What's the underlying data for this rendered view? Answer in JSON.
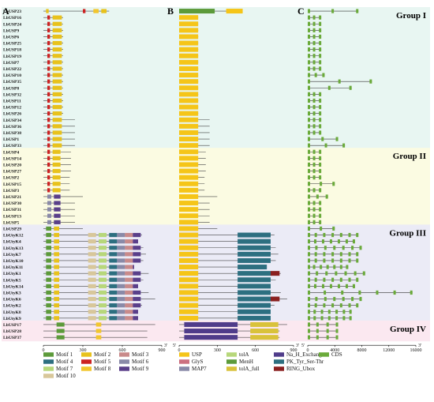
{
  "panels": {
    "a": "A",
    "b": "B",
    "c": "C"
  },
  "groups": [
    {
      "label": "Group I",
      "start": 0,
      "end": 18,
      "color": "#e8f6f2"
    },
    {
      "label": "Group II",
      "start": 19,
      "end": 28,
      "color": "#fbfbe2"
    },
    {
      "label": "Group III",
      "start": 29,
      "end": 42,
      "color": "#ebebf6"
    },
    {
      "label": "Group IV",
      "start": 43,
      "end": 45,
      "color": "#fbe8f0"
    }
  ],
  "genes": [
    "LbUSP23",
    "LbUSP16",
    "LbUSP24",
    "LbUSP9",
    "LbUSP6",
    "LbUSP25",
    "LbUSP18",
    "LbUSP19",
    "LbUSP7",
    "LbUSP22",
    "LbUSP10",
    "LbUSP35",
    "LbUSP8",
    "LbUSP32",
    "LbUSP11",
    "LbUSP12",
    "LbUSP26",
    "LbUSP34",
    "LbUSP36",
    "LbUSP38",
    "LbUSP1",
    "LbUSP33",
    "LbUSP4",
    "LbUSP14",
    "LbUSP20",
    "LbUSP27",
    "LbUSP2",
    "LbUSP15",
    "LbUSP3",
    "LbUSP21",
    "LbUSP30",
    "LbUSP31",
    "LbUSP13",
    "LbUSP5",
    "LbUSP29",
    "LbUtyK12",
    "LbUtyK4",
    "LbUtyK13",
    "LbUtyK7",
    "LbUtyK10",
    "LbUtyK11",
    "LbUtyK1",
    "LbUtyK5",
    "LbUtyK14",
    "LbUtyK3",
    "LbUtyK6",
    "LbUtyK2",
    "LbUtyK8",
    "LbUtyK9",
    "LbUSP17",
    "LbUSP28",
    "LbUSP37"
  ],
  "axisA": {
    "ticks": [
      "0",
      "300",
      "600",
      "900"
    ],
    "min": 0,
    "max": 900,
    "end": "3'"
  },
  "axisB": {
    "ticks": [
      "0",
      "300",
      "600",
      "900"
    ],
    "min": 0,
    "max": 900,
    "start": "5'",
    "end": "3'"
  },
  "axisC": {
    "ticks": [
      "0",
      "4000",
      "8000",
      "12000",
      "16000"
    ],
    "min": 0,
    "max": 16000,
    "start": "5'",
    "end": "3'"
  },
  "legendA": [
    {
      "label": "Motif 1",
      "color": "#5c9a3a"
    },
    {
      "label": "Motif 2",
      "color": "#e8c21c"
    },
    {
      "label": "Motif 3",
      "color": "#c98a8a"
    },
    {
      "label": "Motif 4",
      "color": "#2d6f80"
    },
    {
      "label": "Motif 5",
      "color": "#cc2222"
    },
    {
      "label": "Motif 6",
      "color": "#8a8aa8"
    },
    {
      "label": "Motif 7",
      "color": "#b7d77a"
    },
    {
      "label": "Motif 8",
      "color": "#f2c62e"
    },
    {
      "label": "Motif 9",
      "color": "#5a3f8a"
    },
    {
      "label": "Motif 10",
      "color": "#d8c79a"
    }
  ],
  "legendB": [
    {
      "label": "USP",
      "color": "#f5c518"
    },
    {
      "label": "tolA",
      "color": "#b7d77a"
    },
    {
      "label": "Na_H_Exchanger",
      "color": "#4f3c8a"
    },
    {
      "label": "GlyS",
      "color": "#cc7080"
    },
    {
      "label": "MenH",
      "color": "#5c9a3a"
    },
    {
      "label": "PK_Tyr_Ser-Thr",
      "color": "#2d6f80"
    },
    {
      "label": "MAP7",
      "color": "#8a8aa8"
    },
    {
      "label": "tolA_full",
      "color": "#d9c23a"
    },
    {
      "label": "RING_Ubox",
      "color": "#8a2020"
    }
  ],
  "legendC": [
    {
      "label": "CDS",
      "color": "#6aaa3a"
    }
  ]
}
